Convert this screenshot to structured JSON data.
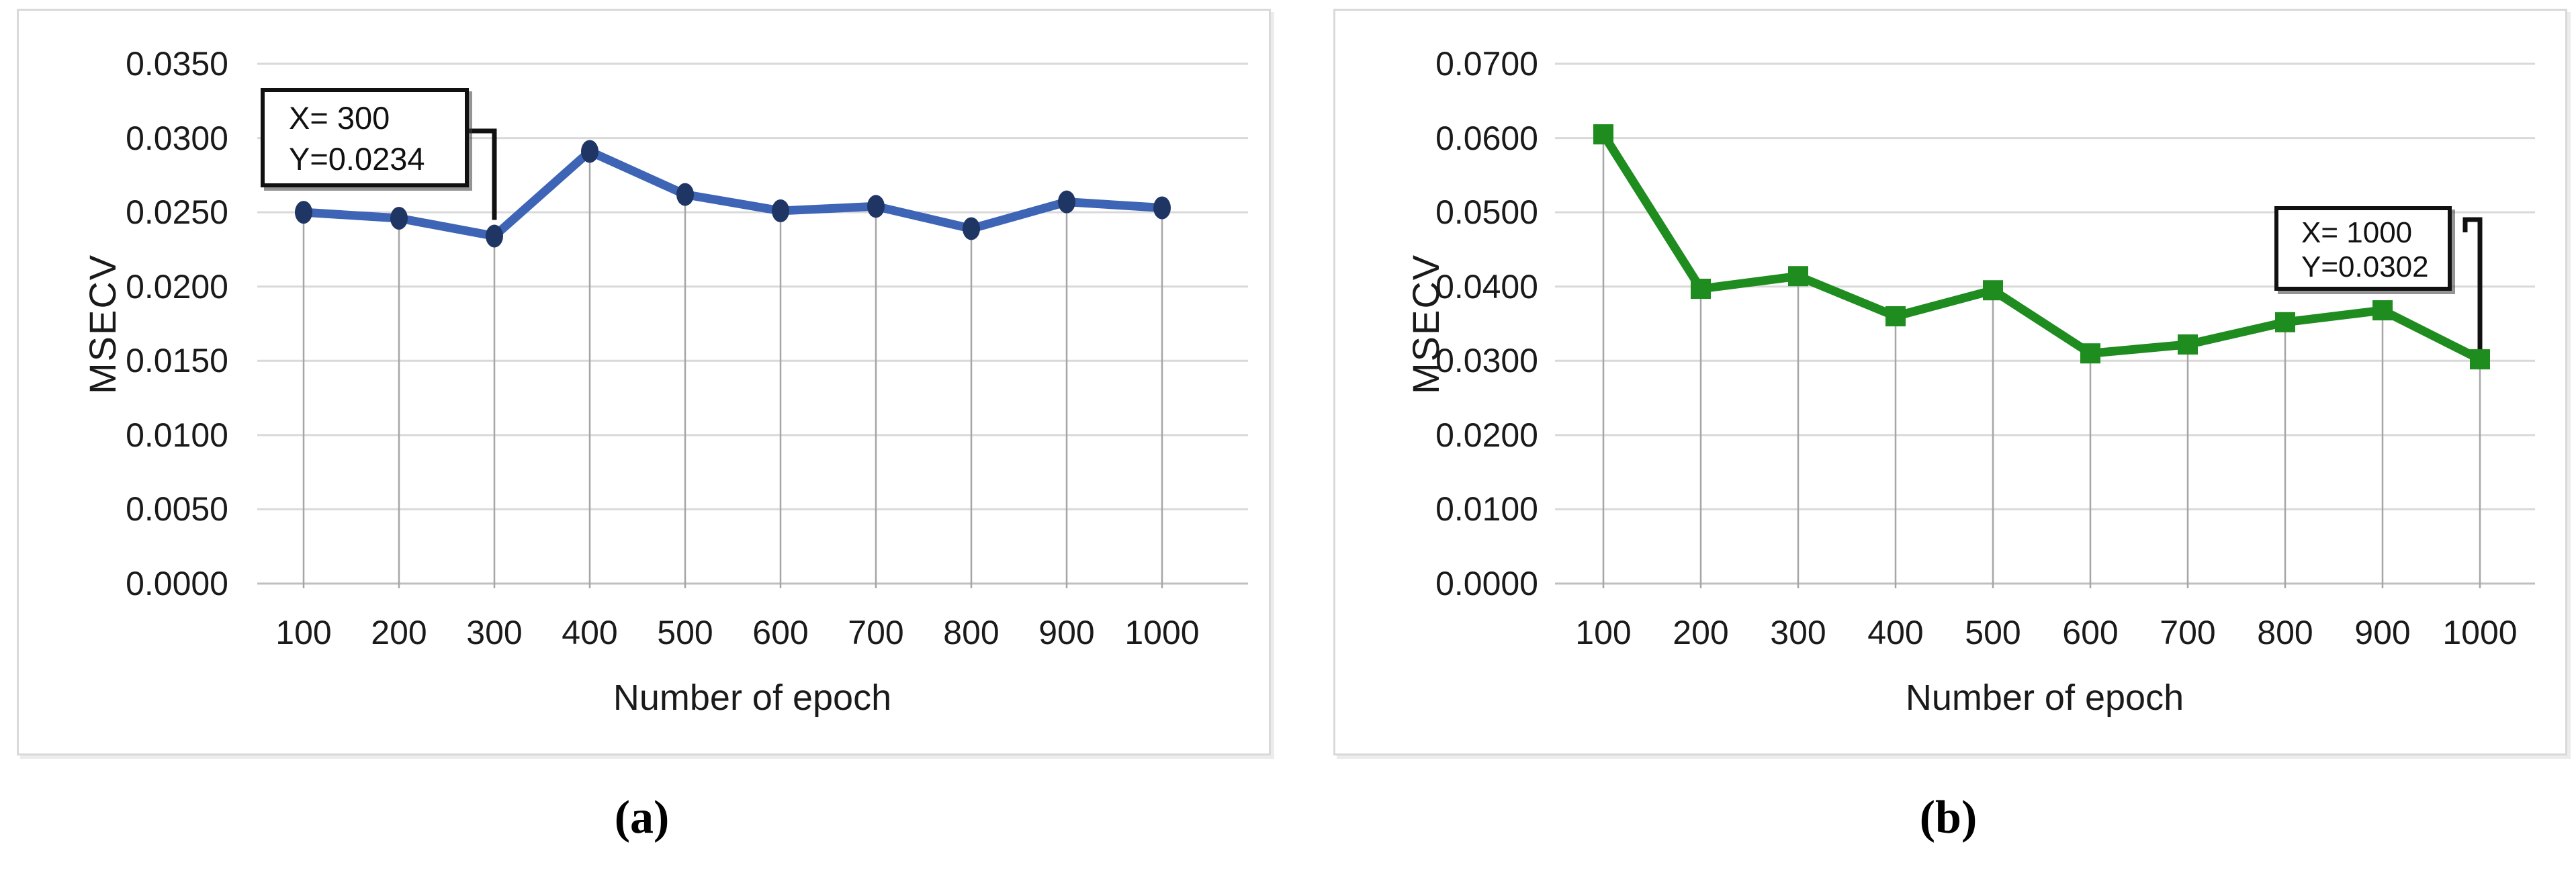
{
  "figure": {
    "caption_a": "(a)",
    "caption_b": "(b)"
  },
  "chart_data": [
    {
      "id": "a",
      "type": "line",
      "title": "",
      "xlabel": "Number of epoch",
      "ylabel": "MSECV",
      "categories": [
        "100",
        "200",
        "300",
        "400",
        "500",
        "600",
        "700",
        "800",
        "900",
        "1000"
      ],
      "values": [
        0.025,
        0.0246,
        0.0234,
        0.0291,
        0.0262,
        0.0251,
        0.0254,
        0.0239,
        0.0257,
        0.0253
      ],
      "y_tick_labels": [
        "0.0000",
        "0.0050",
        "0.0100",
        "0.0150",
        "0.0200",
        "0.0250",
        "0.0300",
        "0.0350"
      ],
      "ylim": [
        0,
        0.035
      ],
      "grid": "horizontal",
      "legend": "none",
      "line_color": "#3D64B5",
      "marker_color": "#1F3563",
      "marker": "circle",
      "dropline_color": "#A6A6A6",
      "gridline_color": "#D9D9D9",
      "annotation": {
        "line1": "X= 300",
        "line2": "Y=0.0234",
        "target_x": "300",
        "target_y": 0.0234
      },
      "caption": "(a)"
    },
    {
      "id": "b",
      "type": "line",
      "title": "",
      "xlabel": "Number of epoch",
      "ylabel": "MSECV",
      "categories": [
        "100",
        "200",
        "300",
        "400",
        "500",
        "600",
        "700",
        "800",
        "900",
        "1000"
      ],
      "values": [
        0.0605,
        0.0397,
        0.0414,
        0.036,
        0.0395,
        0.031,
        0.0322,
        0.0352,
        0.0368,
        0.0302
      ],
      "y_tick_labels": [
        "0.0000",
        "0.0100",
        "0.0200",
        "0.0300",
        "0.0400",
        "0.0500",
        "0.0600",
        "0.0700"
      ],
      "ylim": [
        0,
        0.07
      ],
      "grid": "horizontal",
      "legend": "none",
      "line_color": "#1E8C1E",
      "marker_color": "#1E8C1E",
      "marker": "square",
      "dropline_color": "#A6A6A6",
      "gridline_color": "#D9D9D9",
      "annotation": {
        "line1": "X= 1000",
        "line2": "Y=0.0302",
        "target_x": "1000",
        "target_y": 0.0302
      },
      "caption": "(b)"
    }
  ]
}
